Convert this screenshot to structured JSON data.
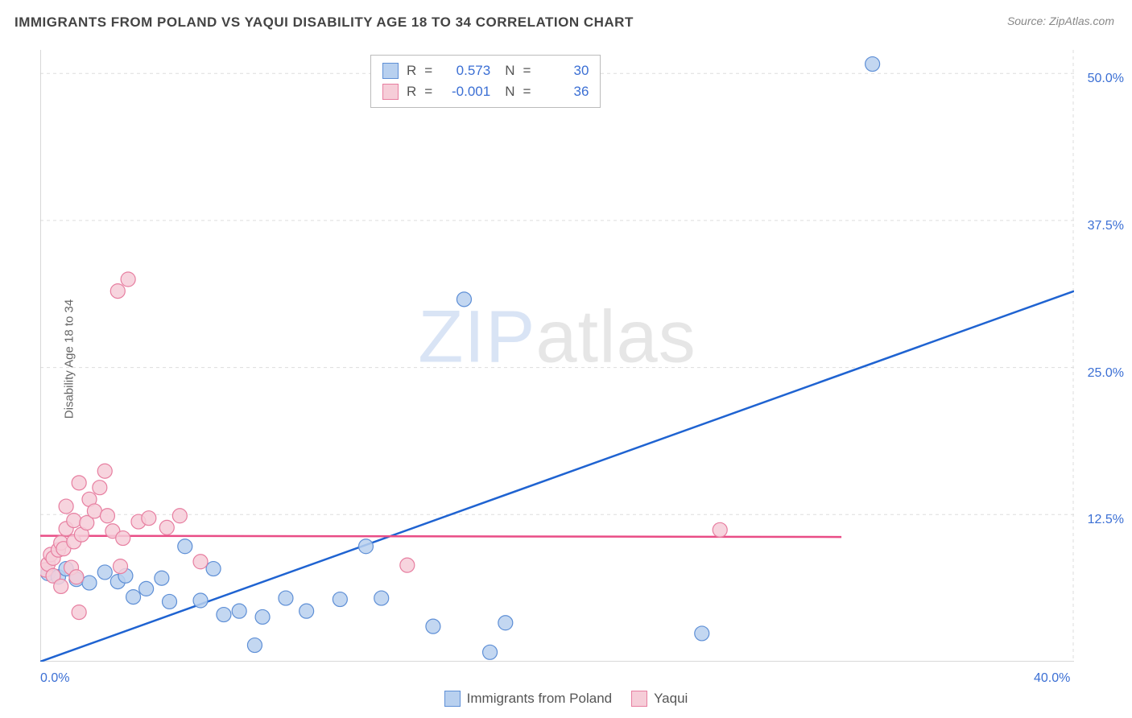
{
  "title": "IMMIGRANTS FROM POLAND VS YAQUI DISABILITY AGE 18 TO 34 CORRELATION CHART",
  "source_label": "Source:",
  "source_value": "ZipAtlas.com",
  "ylabel": "Disability Age 18 to 34",
  "watermark_a": "ZIP",
  "watermark_b": "atlas",
  "chart": {
    "type": "scatter",
    "background_color": "#ffffff",
    "grid_color": "#dddddd",
    "axis_color": "#cccccc",
    "xlim": [
      0,
      40
    ],
    "ylim": [
      0,
      52
    ],
    "xticks": [
      {
        "v": 0,
        "label": "0.0%"
      },
      {
        "v": 40,
        "label": "40.0%"
      }
    ],
    "yticks": [
      {
        "v": 12.5,
        "label": "12.5%"
      },
      {
        "v": 25,
        "label": "25.0%"
      },
      {
        "v": 37.5,
        "label": "37.5%"
      },
      {
        "v": 50,
        "label": "50.0%"
      }
    ],
    "series": [
      {
        "name": "Immigrants from Poland",
        "fill": "#b8d0ef",
        "stroke": "#5e8fd6",
        "line_color": "#1f63d1",
        "line_width": 2.5,
        "marker_r": 9,
        "R": "0.573",
        "N": "30",
        "trend": {
          "x1": 0,
          "y1": 0,
          "x2": 40,
          "y2": 31.5
        },
        "points": [
          [
            0.3,
            7.5
          ],
          [
            0.7,
            7.2
          ],
          [
            1.0,
            7.9
          ],
          [
            1.4,
            7.0
          ],
          [
            1.9,
            6.7
          ],
          [
            2.5,
            7.6
          ],
          [
            3.0,
            6.8
          ],
          [
            3.3,
            7.3
          ],
          [
            3.6,
            5.5
          ],
          [
            4.1,
            6.2
          ],
          [
            4.7,
            7.1
          ],
          [
            5.0,
            5.1
          ],
          [
            5.6,
            9.8
          ],
          [
            6.2,
            5.2
          ],
          [
            6.7,
            7.9
          ],
          [
            7.1,
            4.0
          ],
          [
            7.7,
            4.3
          ],
          [
            8.3,
            1.4
          ],
          [
            8.6,
            3.8
          ],
          [
            9.5,
            5.4
          ],
          [
            10.3,
            4.3
          ],
          [
            11.6,
            5.3
          ],
          [
            12.6,
            9.8
          ],
          [
            13.2,
            5.4
          ],
          [
            15.2,
            3.0
          ],
          [
            16.4,
            30.8
          ],
          [
            17.4,
            0.8
          ],
          [
            18.0,
            3.3
          ],
          [
            25.6,
            2.4
          ],
          [
            32.2,
            50.8
          ]
        ]
      },
      {
        "name": "Yaqui",
        "fill": "#f6cdd8",
        "stroke": "#e77ea0",
        "line_color": "#e94d86",
        "line_width": 2.5,
        "marker_r": 9,
        "R": "-0.001",
        "N": "36",
        "trend": {
          "x1": 0,
          "y1": 10.7,
          "x2": 31,
          "y2": 10.6
        },
        "points": [
          [
            0.2,
            7.8
          ],
          [
            0.3,
            8.3
          ],
          [
            0.4,
            9.1
          ],
          [
            0.5,
            7.3
          ],
          [
            0.5,
            8.8
          ],
          [
            0.7,
            9.5
          ],
          [
            0.8,
            6.4
          ],
          [
            0.8,
            10.1
          ],
          [
            0.9,
            9.6
          ],
          [
            1.0,
            11.3
          ],
          [
            1.0,
            13.2
          ],
          [
            1.2,
            8.0
          ],
          [
            1.3,
            12.0
          ],
          [
            1.3,
            10.2
          ],
          [
            1.4,
            7.2
          ],
          [
            1.5,
            15.2
          ],
          [
            1.5,
            4.2
          ],
          [
            1.6,
            10.8
          ],
          [
            1.8,
            11.8
          ],
          [
            1.9,
            13.8
          ],
          [
            2.1,
            12.8
          ],
          [
            2.3,
            14.8
          ],
          [
            2.5,
            16.2
          ],
          [
            2.6,
            12.4
          ],
          [
            2.8,
            11.1
          ],
          [
            3.0,
            31.5
          ],
          [
            3.1,
            8.1
          ],
          [
            3.2,
            10.5
          ],
          [
            3.4,
            32.5
          ],
          [
            3.8,
            11.9
          ],
          [
            4.2,
            12.2
          ],
          [
            4.9,
            11.4
          ],
          [
            5.4,
            12.4
          ],
          [
            6.2,
            8.5
          ],
          [
            14.2,
            8.2
          ],
          [
            26.3,
            11.2
          ]
        ]
      }
    ]
  },
  "legend_top": {
    "r_label": "R",
    "n_label": "N",
    "eq": "="
  },
  "legend_bottom": {
    "items": [
      "Immigrants from Poland",
      "Yaqui"
    ]
  }
}
